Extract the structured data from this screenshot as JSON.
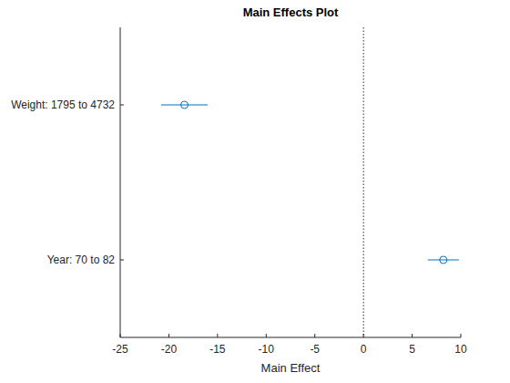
{
  "chart_data": {
    "type": "scatter",
    "orientation": "horizontal",
    "title": "Main Effects Plot",
    "x_label": "Main Effect",
    "categories": [
      "Weight: 1795 to 4732",
      "Year: 70 to 82"
    ],
    "values": [
      -18.4,
      8.2
    ],
    "errors": [
      2.4,
      1.6
    ],
    "color": "#0072bd",
    "marker": "circle",
    "line_style": "solid",
    "reference": 0,
    "xlim": [
      -25,
      10
    ],
    "xticks": [
      -25,
      -20,
      -15,
      -10,
      -5,
      0,
      5,
      10
    ]
  }
}
